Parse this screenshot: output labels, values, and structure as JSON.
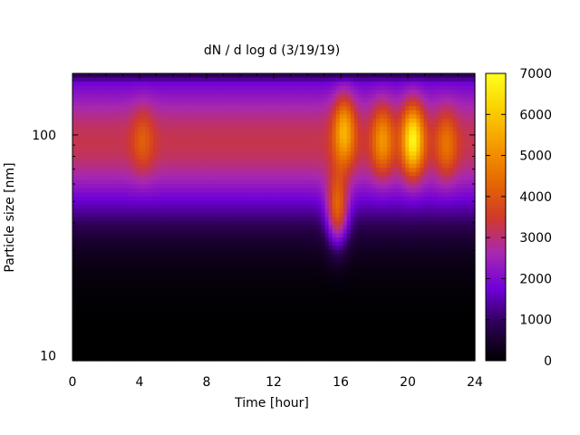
{
  "chart_data": {
    "type": "heatmap",
    "title": "dN / d log d (3/19/19)",
    "xlabel": "Time [hour]",
    "ylabel": "Particle size [nm]",
    "x_range": [
      0,
      24
    ],
    "x_ticks": [
      0,
      4,
      8,
      12,
      16,
      20,
      24
    ],
    "x_tick_labels": [
      "0",
      "4",
      "8",
      "12",
      "16",
      "20",
      "24"
    ],
    "y_scale": "log",
    "y_range": [
      9.5,
      190
    ],
    "y_ticks": [
      10,
      100
    ],
    "y_tick_labels": [
      "10",
      "100"
    ],
    "colorbar_range": [
      0,
      7000
    ],
    "colorbar_ticks": [
      0,
      1000,
      2000,
      3000,
      4000,
      5000,
      6000,
      7000
    ],
    "colorbar_tick_labels": [
      "0",
      "1000",
      "2000",
      "3000",
      "4000",
      "5000",
      "6000",
      "7000"
    ],
    "colormap": [
      "#000000",
      "#2b0050",
      "#6f00d8",
      "#a828b0",
      "#d13a28",
      "#e66a00",
      "#f59a00",
      "#fbd000",
      "#ffff20"
    ],
    "features": {
      "background_band": {
        "center_nm": 90,
        "peak": 2600
      },
      "events": [
        {
          "time_hour": 16.2,
          "size_nm": 105,
          "value": 4600
        },
        {
          "time_hour": 15.8,
          "size_nm": 45,
          "value": 4900
        },
        {
          "time_hour": 18.5,
          "size_nm": 95,
          "value": 4000
        },
        {
          "time_hour": 20.3,
          "size_nm": 95,
          "value": 5700
        },
        {
          "time_hour": 22.3,
          "size_nm": 90,
          "value": 3400
        },
        {
          "time_hour": 4.2,
          "size_nm": 95,
          "value": 3000
        }
      ]
    }
  }
}
